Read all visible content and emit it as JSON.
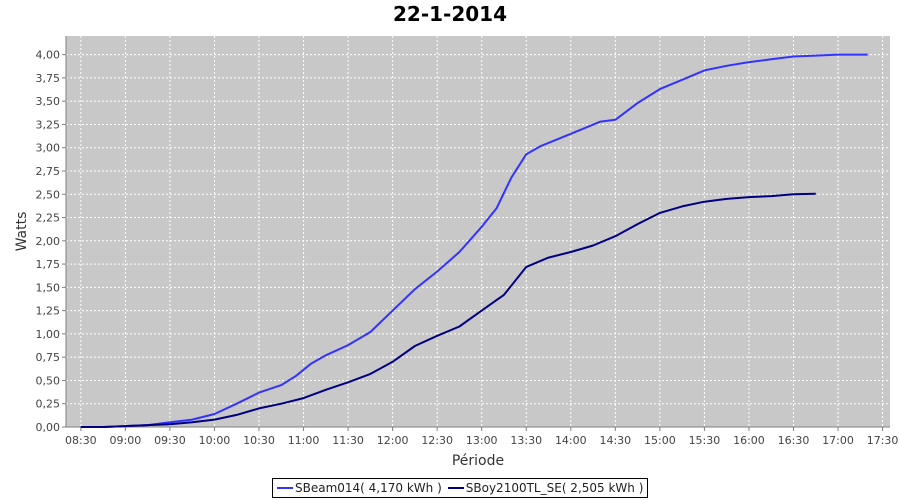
{
  "chart_data": {
    "type": "line",
    "title": "22-1-2014",
    "xlabel": "Période",
    "ylabel": "Watts",
    "x_ticks": [
      "08:30",
      "09:00",
      "09:30",
      "10:00",
      "10:30",
      "11:00",
      "11:30",
      "12:00",
      "12:30",
      "13:00",
      "13:30",
      "14:00",
      "14:30",
      "15:00",
      "15:30",
      "16:00",
      "16:30",
      "17:00",
      "17:30"
    ],
    "y_ticks": [
      "0,00",
      "0,25",
      "0,50",
      "0,75",
      "1,00",
      "1,25",
      "1,50",
      "1,75",
      "2,00",
      "2,25",
      "2,50",
      "2,75",
      "3,00",
      "3,25",
      "3,50",
      "3,75",
      "4,00"
    ],
    "xlim": [
      "08:20",
      "17:35"
    ],
    "ylim": [
      0,
      4.2
    ],
    "grid": true,
    "legend_position": "bottom",
    "series": [
      {
        "name": "SBeam014( 4,170 kWh )",
        "color": "#3333ff",
        "points": [
          [
            "08:30",
            0.0
          ],
          [
            "08:45",
            0.0
          ],
          [
            "09:00",
            0.01
          ],
          [
            "09:15",
            0.02
          ],
          [
            "09:30",
            0.05
          ],
          [
            "09:45",
            0.08
          ],
          [
            "10:00",
            0.14
          ],
          [
            "10:15",
            0.25
          ],
          [
            "10:30",
            0.37
          ],
          [
            "10:45",
            0.45
          ],
          [
            "10:55",
            0.55
          ],
          [
            "11:05",
            0.68
          ],
          [
            "11:15",
            0.77
          ],
          [
            "11:30",
            0.88
          ],
          [
            "11:45",
            1.02
          ],
          [
            "12:00",
            1.25
          ],
          [
            "12:15",
            1.48
          ],
          [
            "12:30",
            1.67
          ],
          [
            "12:45",
            1.88
          ],
          [
            "13:00",
            2.15
          ],
          [
            "13:10",
            2.35
          ],
          [
            "13:20",
            2.68
          ],
          [
            "13:30",
            2.93
          ],
          [
            "13:40",
            3.02
          ],
          [
            "14:00",
            3.15
          ],
          [
            "14:20",
            3.28
          ],
          [
            "14:30",
            3.3
          ],
          [
            "14:45",
            3.48
          ],
          [
            "15:00",
            3.63
          ],
          [
            "15:15",
            3.73
          ],
          [
            "15:30",
            3.83
          ],
          [
            "15:45",
            3.88
          ],
          [
            "16:00",
            3.92
          ],
          [
            "16:15",
            3.95
          ],
          [
            "16:30",
            3.98
          ],
          [
            "16:45",
            3.99
          ],
          [
            "17:00",
            4.0
          ],
          [
            "17:20",
            4.0
          ]
        ]
      },
      {
        "name": "SBoy2100TL_SE( 2,505 kWh )",
        "color": "#000080",
        "points": [
          [
            "08:30",
            0.0
          ],
          [
            "08:45",
            0.0
          ],
          [
            "09:00",
            0.01
          ],
          [
            "09:15",
            0.02
          ],
          [
            "09:30",
            0.03
          ],
          [
            "09:45",
            0.05
          ],
          [
            "10:00",
            0.08
          ],
          [
            "10:15",
            0.13
          ],
          [
            "10:30",
            0.2
          ],
          [
            "10:45",
            0.25
          ],
          [
            "11:00",
            0.31
          ],
          [
            "11:15",
            0.4
          ],
          [
            "11:30",
            0.48
          ],
          [
            "11:45",
            0.57
          ],
          [
            "12:00",
            0.7
          ],
          [
            "12:15",
            0.87
          ],
          [
            "12:30",
            0.98
          ],
          [
            "12:45",
            1.08
          ],
          [
            "13:00",
            1.25
          ],
          [
            "13:15",
            1.42
          ],
          [
            "13:30",
            1.72
          ],
          [
            "13:45",
            1.82
          ],
          [
            "14:00",
            1.88
          ],
          [
            "14:15",
            1.95
          ],
          [
            "14:30",
            2.05
          ],
          [
            "14:45",
            2.18
          ],
          [
            "15:00",
            2.3
          ],
          [
            "15:15",
            2.37
          ],
          [
            "15:30",
            2.42
          ],
          [
            "15:45",
            2.45
          ],
          [
            "16:00",
            2.47
          ],
          [
            "16:15",
            2.48
          ],
          [
            "16:30",
            2.5
          ],
          [
            "16:45",
            2.505
          ]
        ]
      }
    ]
  }
}
